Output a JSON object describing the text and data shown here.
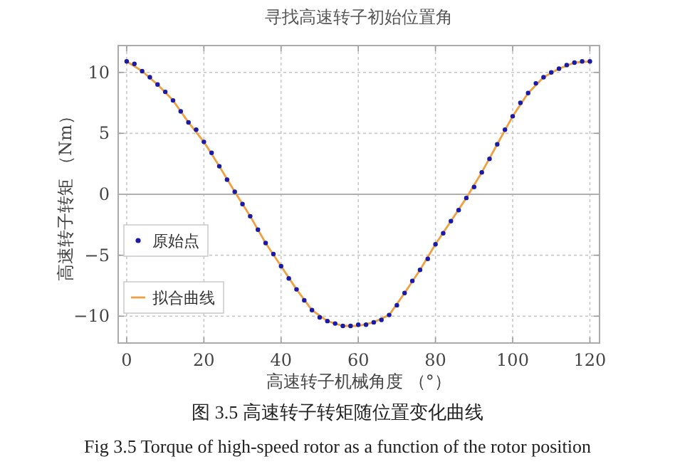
{
  "chart_data": {
    "type": "scatter",
    "title": "寻找高速转子初始位置角",
    "xlabel": "高速转子机械角度 （°）",
    "ylabel": "高速转子转矩 （Nm）",
    "annotations": [
      "图 3.5 高速转子转矩随位置变化曲线",
      "Fig 3.5 Torque of high-speed rotor as a function of the rotor position"
    ],
    "xlim": [
      -2.2,
      122.5
    ],
    "ylim": [
      -12.2,
      12.2
    ],
    "xticks": [
      0,
      20,
      40,
      60,
      80,
      100,
      120
    ],
    "yticks": [
      -10,
      -5,
      0,
      5,
      10
    ],
    "grid": true,
    "legend": "left",
    "ref_lines": [
      {
        "axis": "y",
        "value": 0,
        "color": "#b0b0b0"
      }
    ],
    "series": [
      {
        "name": "原始点",
        "type": "scatter",
        "marker": "circle",
        "color": "#1a1aa8",
        "x": [
          0,
          2,
          4,
          6,
          8,
          10,
          12,
          14,
          16,
          18,
          20,
          22,
          24,
          26,
          28,
          30,
          32,
          34,
          36,
          38,
          40,
          42,
          44,
          46,
          48,
          50,
          52,
          54,
          56,
          58,
          60,
          62,
          64,
          66,
          68,
          70,
          72,
          74,
          76,
          78,
          80,
          82,
          84,
          86,
          88,
          90,
          92,
          94,
          96,
          98,
          100,
          102,
          104,
          106,
          108,
          110,
          112,
          114,
          116,
          118,
          120
        ],
        "values": [
          10.9,
          10.7,
          10.1,
          9.6,
          9.0,
          8.4,
          7.7,
          6.8,
          5.9,
          5.3,
          4.3,
          3.4,
          2.3,
          1.2,
          0.2,
          -0.8,
          -1.8,
          -2.9,
          -4.0,
          -4.9,
          -5.9,
          -6.9,
          -7.8,
          -8.7,
          -9.5,
          -10.1,
          -10.4,
          -10.6,
          -10.8,
          -10.8,
          -10.7,
          -10.7,
          -10.5,
          -10.3,
          -9.9,
          -9.1,
          -8.1,
          -7.1,
          -6.2,
          -5.3,
          -4.1,
          -3.2,
          -2.2,
          -1.3,
          -0.3,
          0.6,
          1.8,
          2.9,
          4.1,
          5.3,
          6.4,
          7.5,
          8.3,
          9.1,
          9.6,
          10.0,
          10.3,
          10.6,
          10.8,
          10.9,
          10.9
        ]
      },
      {
        "name": "拟合曲线",
        "type": "line",
        "color": "#f0a040",
        "x": [
          0,
          4,
          8,
          12,
          16,
          20,
          24,
          28,
          32,
          36,
          40,
          44,
          48,
          52,
          56,
          60,
          64,
          68,
          72,
          76,
          80,
          84,
          88,
          92,
          96,
          100,
          104,
          108,
          112,
          116,
          120
        ],
        "values": [
          10.9,
          10.1,
          9.0,
          7.7,
          5.9,
          4.3,
          2.3,
          0.2,
          -1.8,
          -4.0,
          -5.9,
          -7.8,
          -9.5,
          -10.4,
          -10.8,
          -10.8,
          -10.5,
          -9.9,
          -8.1,
          -6.2,
          -4.1,
          -2.2,
          -0.3,
          1.8,
          4.1,
          6.4,
          8.3,
          9.6,
          10.3,
          10.8,
          10.9
        ]
      }
    ]
  }
}
